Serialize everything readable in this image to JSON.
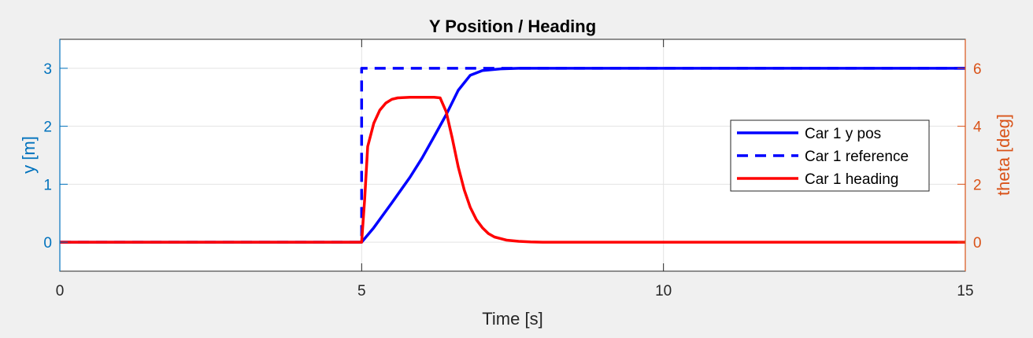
{
  "chart_data": {
    "type": "line",
    "title": "Y Position / Heading",
    "xlabel": "Time [s]",
    "ylabel_left": "y [m]",
    "ylabel_right": "theta [deg]",
    "xlim": [
      0,
      15
    ],
    "ylim_left": [
      -0.5,
      3.5
    ],
    "ylim_right": [
      -1,
      7
    ],
    "xticks": [
      0,
      5,
      10,
      15
    ],
    "yticks_left": [
      0,
      1,
      2,
      3
    ],
    "yticks_right": [
      0,
      2,
      4,
      6
    ],
    "grid": true,
    "legend_position": "right",
    "colors": {
      "left_axis": "#0072BD",
      "right_axis": "#D95319",
      "y_pos": "#0000FF",
      "reference": "#0000FF",
      "heading": "#FF0000"
    },
    "series": [
      {
        "name": "Car 1 y pos",
        "axis": "left",
        "style": "solid",
        "x": [
          0,
          5.0,
          5.2,
          5.5,
          5.8,
          6.0,
          6.2,
          6.4,
          6.6,
          6.8,
          7.0,
          7.3,
          7.6,
          8.0,
          15
        ],
        "y": [
          0,
          0,
          0.25,
          0.68,
          1.12,
          1.45,
          1.82,
          2.2,
          2.62,
          2.88,
          2.96,
          2.99,
          3.0,
          3.0,
          3.0
        ]
      },
      {
        "name": "Car 1 reference",
        "axis": "left",
        "style": "dashed",
        "x": [
          0,
          5.0,
          5.0,
          15
        ],
        "y": [
          0,
          0,
          3.0,
          3.0
        ]
      },
      {
        "name": "Car 1 heading",
        "axis": "right",
        "style": "solid",
        "x": [
          0,
          5.0,
          5.05,
          5.1,
          5.2,
          5.3,
          5.4,
          5.5,
          5.6,
          5.8,
          6.0,
          6.2,
          6.3,
          6.4,
          6.5,
          6.6,
          6.7,
          6.8,
          6.9,
          7.0,
          7.1,
          7.2,
          7.4,
          7.6,
          7.8,
          8.0,
          15
        ],
        "y": [
          0,
          0,
          1.5,
          3.3,
          4.1,
          4.55,
          4.8,
          4.93,
          4.98,
          5.0,
          5.0,
          5.0,
          4.98,
          4.5,
          3.6,
          2.6,
          1.8,
          1.2,
          0.78,
          0.5,
          0.3,
          0.18,
          0.07,
          0.03,
          0.01,
          0,
          0
        ]
      }
    ]
  }
}
